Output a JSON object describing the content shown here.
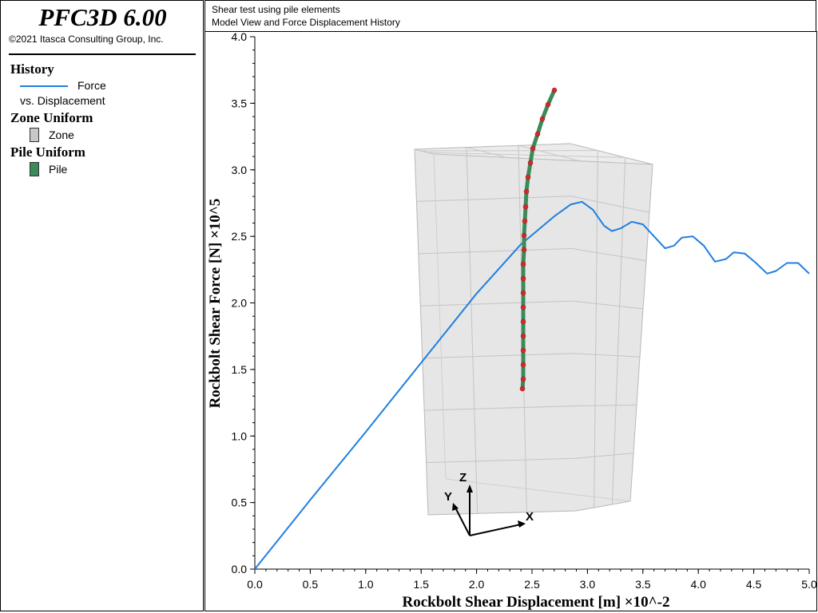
{
  "app": {
    "title": "PFC3D 6.00",
    "copyright": "©2021 Itasca Consulting Group, Inc."
  },
  "header": {
    "line1": "Shear test using pile elements",
    "line2": "Model View and Force Displacement History"
  },
  "legend": {
    "history": {
      "heading": "History",
      "entry_label": "Force",
      "entry_sublabel": "vs. Displacement",
      "color": "#1f7fe0"
    },
    "zone": {
      "heading": "Zone Uniform",
      "entry_label": "Zone",
      "color": "#c8c8c8"
    },
    "pile": {
      "heading": "Pile Uniform",
      "entry_label": "Pile",
      "color": "#3a8a5a"
    }
  },
  "axes_triad": {
    "x_label": "X",
    "y_label": "Y",
    "z_label": "Z"
  },
  "chart_data": {
    "type": "line",
    "xlabel": "Rockbolt Shear Displacement [m] ×10^-2",
    "ylabel": "Rockbolt Shear Force [N] ×10^5",
    "xlim": [
      0,
      5
    ],
    "ylim": [
      0,
      4
    ],
    "x_ticks": [
      "0.0",
      "0.5",
      "1.0",
      "1.5",
      "2.0",
      "2.5",
      "3.0",
      "3.5",
      "4.0",
      "4.5",
      "5.0"
    ],
    "y_ticks": [
      "0.0",
      "0.5",
      "1.0",
      "1.5",
      "2.0",
      "2.5",
      "3.0",
      "3.5",
      "4.0"
    ],
    "grid": false,
    "series": [
      {
        "name": "Force",
        "color": "#1f7fe0",
        "x": [
          0.0,
          0.5,
          1.0,
          1.5,
          2.0,
          2.4,
          2.7,
          2.85,
          2.95,
          3.05,
          3.15,
          3.22,
          3.3,
          3.4,
          3.5,
          3.6,
          3.7,
          3.78,
          3.85,
          3.95,
          4.05,
          4.15,
          4.25,
          4.32,
          4.42,
          4.52,
          4.62,
          4.7,
          4.8,
          4.9,
          5.0
        ],
        "y": [
          0.0,
          0.52,
          1.03,
          1.55,
          2.07,
          2.44,
          2.65,
          2.74,
          2.76,
          2.7,
          2.58,
          2.54,
          2.56,
          2.61,
          2.59,
          2.5,
          2.41,
          2.43,
          2.49,
          2.5,
          2.43,
          2.31,
          2.33,
          2.38,
          2.37,
          2.3,
          2.22,
          2.24,
          2.3,
          2.3,
          2.22
        ]
      }
    ]
  }
}
